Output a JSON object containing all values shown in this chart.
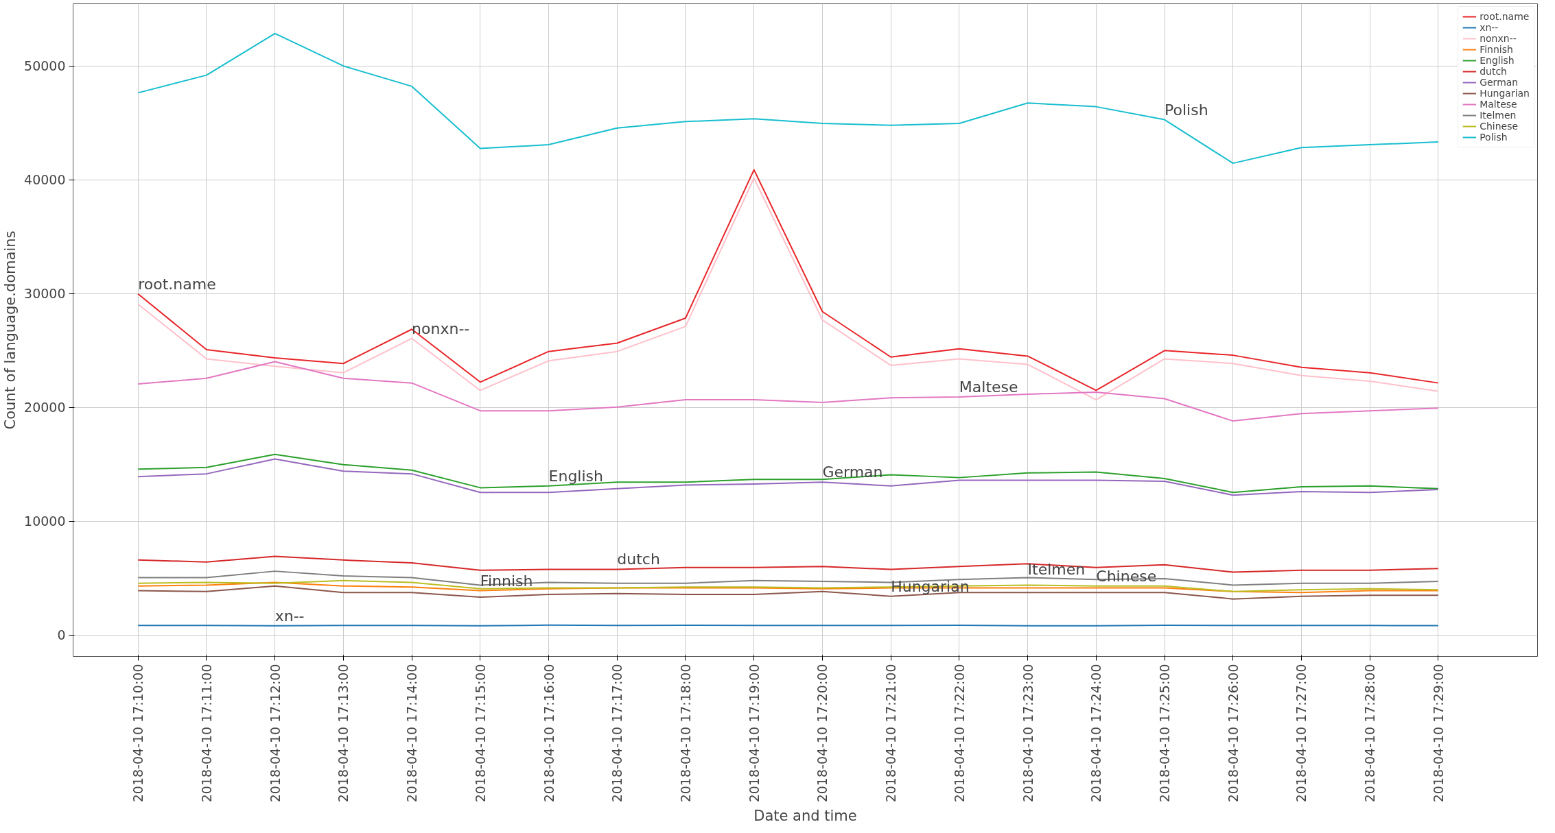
{
  "chart_data": {
    "type": "line",
    "xlabel": "Date and time",
    "ylabel": "Count of language.domains",
    "categories": [
      "2018-04-10 17:10:00",
      "2018-04-10 17:11:00",
      "2018-04-10 17:12:00",
      "2018-04-10 17:13:00",
      "2018-04-10 17:14:00",
      "2018-04-10 17:15:00",
      "2018-04-10 17:16:00",
      "2018-04-10 17:17:00",
      "2018-04-10 17:18:00",
      "2018-04-10 17:19:00",
      "2018-04-10 17:20:00",
      "2018-04-10 17:21:00",
      "2018-04-10 17:22:00",
      "2018-04-10 17:23:00",
      "2018-04-10 17:24:00",
      "2018-04-10 17:25:00",
      "2018-04-10 17:26:00",
      "2018-04-10 17:27:00",
      "2018-04-10 17:28:00",
      "2018-04-10 17:29:00"
    ],
    "series": [
      {
        "name": "root.name",
        "color": "#e8262a",
        "values": [
          29970,
          25080,
          24350,
          23860,
          26870,
          22230,
          24920,
          25650,
          27850,
          40880,
          28420,
          24430,
          25160,
          24510,
          21500,
          25000,
          24590,
          23530,
          23050,
          22150
        ]
      },
      {
        "name": "xn--",
        "color": "#1f77b4",
        "values": [
          850,
          850,
          830,
          850,
          850,
          830,
          880,
          860,
          870,
          860,
          850,
          850,
          870,
          820,
          830,
          870,
          860,
          850,
          850,
          840
        ]
      },
      {
        "name": "nonxn--",
        "color": "#ffc0cb",
        "values": [
          29070,
          24270,
          23620,
          23050,
          26060,
          21500,
          24100,
          24920,
          27120,
          40150,
          27690,
          23700,
          24270,
          23780,
          20680,
          24270,
          23860,
          22800,
          22310,
          21420
        ]
      },
      {
        "name": "Finnish",
        "color": "#ff7f0e",
        "values": [
          4320,
          4400,
          4640,
          4320,
          4230,
          3910,
          4070,
          4150,
          4150,
          4150,
          4070,
          4150,
          4150,
          4150,
          4150,
          4150,
          3830,
          3750,
          3910,
          3910
        ]
      },
      {
        "name": "English",
        "color": "#2ca02c",
        "values": [
          14580,
          14740,
          15880,
          14980,
          14500,
          12950,
          13110,
          13440,
          13440,
          13680,
          13680,
          14090,
          13840,
          14250,
          14330,
          13760,
          12540,
          13030,
          13110,
          12870
        ]
      },
      {
        "name": "dutch",
        "color": "#d62728",
        "values": [
          6600,
          6430,
          6920,
          6600,
          6350,
          5700,
          5780,
          5780,
          5940,
          5940,
          6030,
          5780,
          6030,
          6270,
          5940,
          6190,
          5540,
          5700,
          5700,
          5860
        ]
      },
      {
        "name": "German",
        "color": "#9467bd",
        "values": [
          13930,
          14170,
          15470,
          14410,
          14170,
          12540,
          12540,
          12870,
          13190,
          13270,
          13440,
          13110,
          13600,
          13600,
          13600,
          13520,
          12300,
          12620,
          12540,
          12790
        ]
      },
      {
        "name": "Hungarian",
        "color": "#8c564b",
        "values": [
          3910,
          3830,
          4320,
          3750,
          3750,
          3340,
          3580,
          3660,
          3580,
          3580,
          3830,
          3420,
          3750,
          3750,
          3750,
          3750,
          3180,
          3420,
          3500,
          3500
        ]
      },
      {
        "name": "Maltese",
        "color": "#e377c2",
        "values": [
          22070,
          22560,
          24020,
          22560,
          22150,
          19710,
          19710,
          20030,
          20680,
          20680,
          20440,
          20850,
          20930,
          21170,
          21340,
          20770,
          18810,
          19460,
          19710,
          19950
        ]
      },
      {
        "name": "Itelmen",
        "color": "#7f7f7f",
        "values": [
          5050,
          5050,
          5620,
          5210,
          5050,
          4400,
          4640,
          4560,
          4560,
          4800,
          4720,
          4640,
          4890,
          5050,
          4890,
          4970,
          4400,
          4560,
          4560,
          4720
        ]
      },
      {
        "name": "Chinese",
        "color": "#bcbd22",
        "values": [
          4560,
          4640,
          4560,
          4800,
          4640,
          4070,
          4150,
          4150,
          4230,
          4230,
          4150,
          4230,
          4320,
          4400,
          4320,
          4320,
          3830,
          3990,
          4070,
          3990
        ]
      },
      {
        "name": "Polish",
        "color": "#17becf",
        "values": [
          47640,
          49190,
          52850,
          50000,
          48210,
          42750,
          43080,
          44540,
          45110,
          45360,
          44950,
          44790,
          44950,
          46740,
          46420,
          45280,
          41450,
          42830,
          43080,
          43320
        ]
      }
    ],
    "annotations": [
      {
        "text": "root.name",
        "x": "2018-04-10 17:10:00",
        "y": 29970
      },
      {
        "text": "xn--",
        "x": "2018-04-10 17:12:00",
        "y": 830
      },
      {
        "text": "nonxn--",
        "x": "2018-04-10 17:14:00",
        "y": 26060
      },
      {
        "text": "Finnish",
        "x": "2018-04-10 17:15:00",
        "y": 3910
      },
      {
        "text": "English",
        "x": "2018-04-10 17:16:00",
        "y": 13110
      },
      {
        "text": "dutch",
        "x": "2018-04-10 17:17:00",
        "y": 5780
      },
      {
        "text": "German",
        "x": "2018-04-10 17:20:00",
        "y": 13440
      },
      {
        "text": "Hungarian",
        "x": "2018-04-10 17:21:00",
        "y": 3420
      },
      {
        "text": "Maltese",
        "x": "2018-04-10 17:22:00",
        "y": 20930
      },
      {
        "text": "Itelmen",
        "x": "2018-04-10 17:23:00",
        "y": 4890
      },
      {
        "text": "Chinese",
        "x": "2018-04-10 17:24:00",
        "y": 4320
      },
      {
        "text": "Polish",
        "x": "2018-04-10 17:25:00",
        "y": 45280
      }
    ],
    "ylim": [
      -1870,
      55460
    ],
    "yticks": [
      0,
      10000,
      20000,
      30000,
      40000,
      50000
    ],
    "grid": true,
    "legend": "top right",
    "line_style": "solid",
    "marker": "none"
  }
}
